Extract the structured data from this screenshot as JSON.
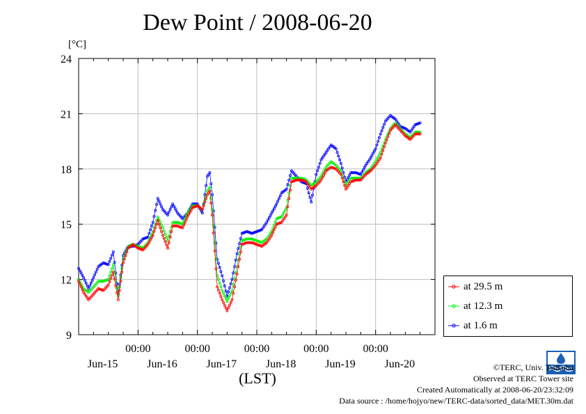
{
  "chart_data": {
    "type": "line",
    "title": "Dew Point / 2008-06-20",
    "unit_label": "[°C]",
    "xlabel": "(LST)",
    "ylim": [
      9,
      24
    ],
    "yticks": [
      9,
      12,
      15,
      18,
      21,
      24
    ],
    "x_time_labels": [
      "00:00",
      "00:00",
      "00:00",
      "00:00",
      "00:00"
    ],
    "x_date_labels": [
      "Jun-15",
      "Jun-16",
      "Jun-17",
      "Jun-18",
      "Jun-19",
      "Jun-20"
    ],
    "x_range_hours": [
      0,
      144
    ],
    "grid": true,
    "legend_position": "right",
    "series": [
      {
        "name": "at 29.5 m",
        "color": "#ff0000",
        "points": [
          [
            0,
            11.9
          ],
          [
            2,
            11.3
          ],
          [
            4,
            10.9
          ],
          [
            6,
            11.2
          ],
          [
            8,
            11.5
          ],
          [
            10,
            11.4
          ],
          [
            12,
            11.7
          ],
          [
            14,
            12.4
          ],
          [
            16,
            10.9
          ],
          [
            18,
            12.9
          ],
          [
            20,
            13.7
          ],
          [
            22,
            13.9
          ],
          [
            24,
            13.7
          ],
          [
            26,
            13.6
          ],
          [
            28,
            13.9
          ],
          [
            30,
            14.4
          ],
          [
            32,
            15.2
          ],
          [
            34,
            14.4
          ],
          [
            36,
            13.7
          ],
          [
            38,
            14.9
          ],
          [
            40,
            14.9
          ],
          [
            42,
            14.8
          ],
          [
            44,
            15.4
          ],
          [
            46,
            15.9
          ],
          [
            48,
            16.0
          ],
          [
            50,
            15.8
          ],
          [
            52,
            16.6
          ],
          [
            53,
            16.8
          ],
          [
            54,
            15.5
          ],
          [
            56,
            11.6
          ],
          [
            58,
            10.9
          ],
          [
            60,
            10.3
          ],
          [
            62,
            10.9
          ],
          [
            64,
            12.3
          ],
          [
            66,
            13.9
          ],
          [
            68,
            14.0
          ],
          [
            70,
            14.0
          ],
          [
            72,
            13.9
          ],
          [
            74,
            13.8
          ],
          [
            76,
            14.0
          ],
          [
            78,
            14.4
          ],
          [
            80,
            15.0
          ],
          [
            82,
            15.1
          ],
          [
            84,
            15.5
          ],
          [
            86,
            17.3
          ],
          [
            88,
            17.4
          ],
          [
            90,
            17.4
          ],
          [
            92,
            17.3
          ],
          [
            94,
            16.9
          ],
          [
            96,
            17.1
          ],
          [
            98,
            17.4
          ],
          [
            100,
            17.9
          ],
          [
            102,
            18.1
          ],
          [
            104,
            18.0
          ],
          [
            106,
            17.7
          ],
          [
            108,
            16.9
          ],
          [
            110,
            17.3
          ],
          [
            112,
            17.4
          ],
          [
            114,
            17.4
          ],
          [
            116,
            17.7
          ],
          [
            118,
            17.9
          ],
          [
            120,
            18.2
          ],
          [
            122,
            18.6
          ],
          [
            124,
            19.4
          ],
          [
            126,
            20.1
          ],
          [
            128,
            20.4
          ],
          [
            130,
            20.1
          ],
          [
            132,
            19.8
          ],
          [
            134,
            19.6
          ],
          [
            136,
            19.9
          ],
          [
            138,
            19.9
          ]
        ]
      },
      {
        "name": "at 12.3 m",
        "color": "#00ee00",
        "points": [
          [
            0,
            12.0
          ],
          [
            2,
            11.5
          ],
          [
            4,
            11.3
          ],
          [
            6,
            11.6
          ],
          [
            8,
            11.9
          ],
          [
            10,
            11.9
          ],
          [
            12,
            12.0
          ],
          [
            14,
            12.8
          ],
          [
            16,
            11.1
          ],
          [
            18,
            13.1
          ],
          [
            20,
            13.8
          ],
          [
            22,
            13.9
          ],
          [
            24,
            13.8
          ],
          [
            26,
            13.7
          ],
          [
            28,
            14.0
          ],
          [
            30,
            14.6
          ],
          [
            32,
            15.4
          ],
          [
            34,
            14.8
          ],
          [
            36,
            14.1
          ],
          [
            38,
            15.1
          ],
          [
            40,
            15.1
          ],
          [
            42,
            15.0
          ],
          [
            44,
            15.6
          ],
          [
            46,
            16.0
          ],
          [
            48,
            16.0
          ],
          [
            50,
            15.8
          ],
          [
            52,
            16.8
          ],
          [
            53,
            17.0
          ],
          [
            54,
            15.8
          ],
          [
            56,
            12.2
          ],
          [
            58,
            11.4
          ],
          [
            60,
            10.8
          ],
          [
            62,
            11.4
          ],
          [
            64,
            12.7
          ],
          [
            66,
            14.1
          ],
          [
            68,
            14.2
          ],
          [
            70,
            14.2
          ],
          [
            72,
            14.1
          ],
          [
            74,
            14.0
          ],
          [
            76,
            14.2
          ],
          [
            78,
            14.6
          ],
          [
            80,
            15.3
          ],
          [
            82,
            15.4
          ],
          [
            84,
            15.9
          ],
          [
            86,
            17.5
          ],
          [
            88,
            17.5
          ],
          [
            90,
            17.5
          ],
          [
            92,
            17.4
          ],
          [
            94,
            17.1
          ],
          [
            96,
            17.3
          ],
          [
            98,
            17.6
          ],
          [
            100,
            18.1
          ],
          [
            102,
            18.4
          ],
          [
            104,
            18.2
          ],
          [
            106,
            17.9
          ],
          [
            108,
            17.1
          ],
          [
            110,
            17.5
          ],
          [
            112,
            17.5
          ],
          [
            114,
            17.5
          ],
          [
            116,
            17.8
          ],
          [
            118,
            18.0
          ],
          [
            120,
            18.4
          ],
          [
            122,
            18.9
          ],
          [
            124,
            19.6
          ],
          [
            126,
            20.2
          ],
          [
            128,
            20.5
          ],
          [
            130,
            20.2
          ],
          [
            132,
            19.9
          ],
          [
            134,
            19.7
          ],
          [
            136,
            20.0
          ],
          [
            138,
            20.0
          ]
        ]
      },
      {
        "name": "at 1.6 m",
        "color": "#0000ff",
        "points": [
          [
            0,
            12.6
          ],
          [
            2,
            12.1
          ],
          [
            4,
            11.5
          ],
          [
            6,
            12.1
          ],
          [
            8,
            12.7
          ],
          [
            10,
            12.9
          ],
          [
            12,
            12.8
          ],
          [
            14,
            13.5
          ],
          [
            16,
            11.2
          ],
          [
            18,
            13.3
          ],
          [
            20,
            13.8
          ],
          [
            22,
            13.8
          ],
          [
            24,
            13.9
          ],
          [
            26,
            14.2
          ],
          [
            28,
            14.3
          ],
          [
            30,
            15.1
          ],
          [
            32,
            16.4
          ],
          [
            34,
            15.8
          ],
          [
            36,
            15.5
          ],
          [
            38,
            16.1
          ],
          [
            40,
            15.6
          ],
          [
            42,
            15.3
          ],
          [
            44,
            15.6
          ],
          [
            46,
            16.1
          ],
          [
            48,
            16.1
          ],
          [
            50,
            15.6
          ],
          [
            52,
            17.6
          ],
          [
            53,
            17.8
          ],
          [
            54,
            16.6
          ],
          [
            56,
            13.1
          ],
          [
            58,
            12.2
          ],
          [
            60,
            11.1
          ],
          [
            62,
            12.0
          ],
          [
            64,
            13.4
          ],
          [
            66,
            14.5
          ],
          [
            68,
            14.6
          ],
          [
            70,
            14.5
          ],
          [
            72,
            14.6
          ],
          [
            74,
            14.7
          ],
          [
            76,
            15.1
          ],
          [
            78,
            15.6
          ],
          [
            80,
            16.1
          ],
          [
            82,
            16.7
          ],
          [
            84,
            16.9
          ],
          [
            86,
            17.9
          ],
          [
            88,
            17.6
          ],
          [
            90,
            17.3
          ],
          [
            92,
            17.2
          ],
          [
            94,
            16.2
          ],
          [
            96,
            17.7
          ],
          [
            98,
            18.5
          ],
          [
            100,
            18.9
          ],
          [
            102,
            19.3
          ],
          [
            104,
            19.1
          ],
          [
            106,
            18.3
          ],
          [
            108,
            17.3
          ],
          [
            110,
            17.8
          ],
          [
            112,
            17.8
          ],
          [
            114,
            17.7
          ],
          [
            116,
            18.2
          ],
          [
            118,
            18.6
          ],
          [
            120,
            19.1
          ],
          [
            122,
            19.9
          ],
          [
            124,
            20.6
          ],
          [
            126,
            20.9
          ],
          [
            128,
            20.7
          ],
          [
            130,
            20.3
          ],
          [
            132,
            20.2
          ],
          [
            134,
            20.0
          ],
          [
            136,
            20.4
          ],
          [
            138,
            20.5
          ]
        ]
      }
    ]
  },
  "credits": {
    "copyright": "©TERC, Univ. Tsukuba",
    "observed": "Observed at TERC Tower site",
    "created": "Created Automatically at 2008-06-20/23:32:09",
    "source": "Data source : /home/hojyo/new/TERC-data/sorted_data/MET.30m.dat"
  }
}
